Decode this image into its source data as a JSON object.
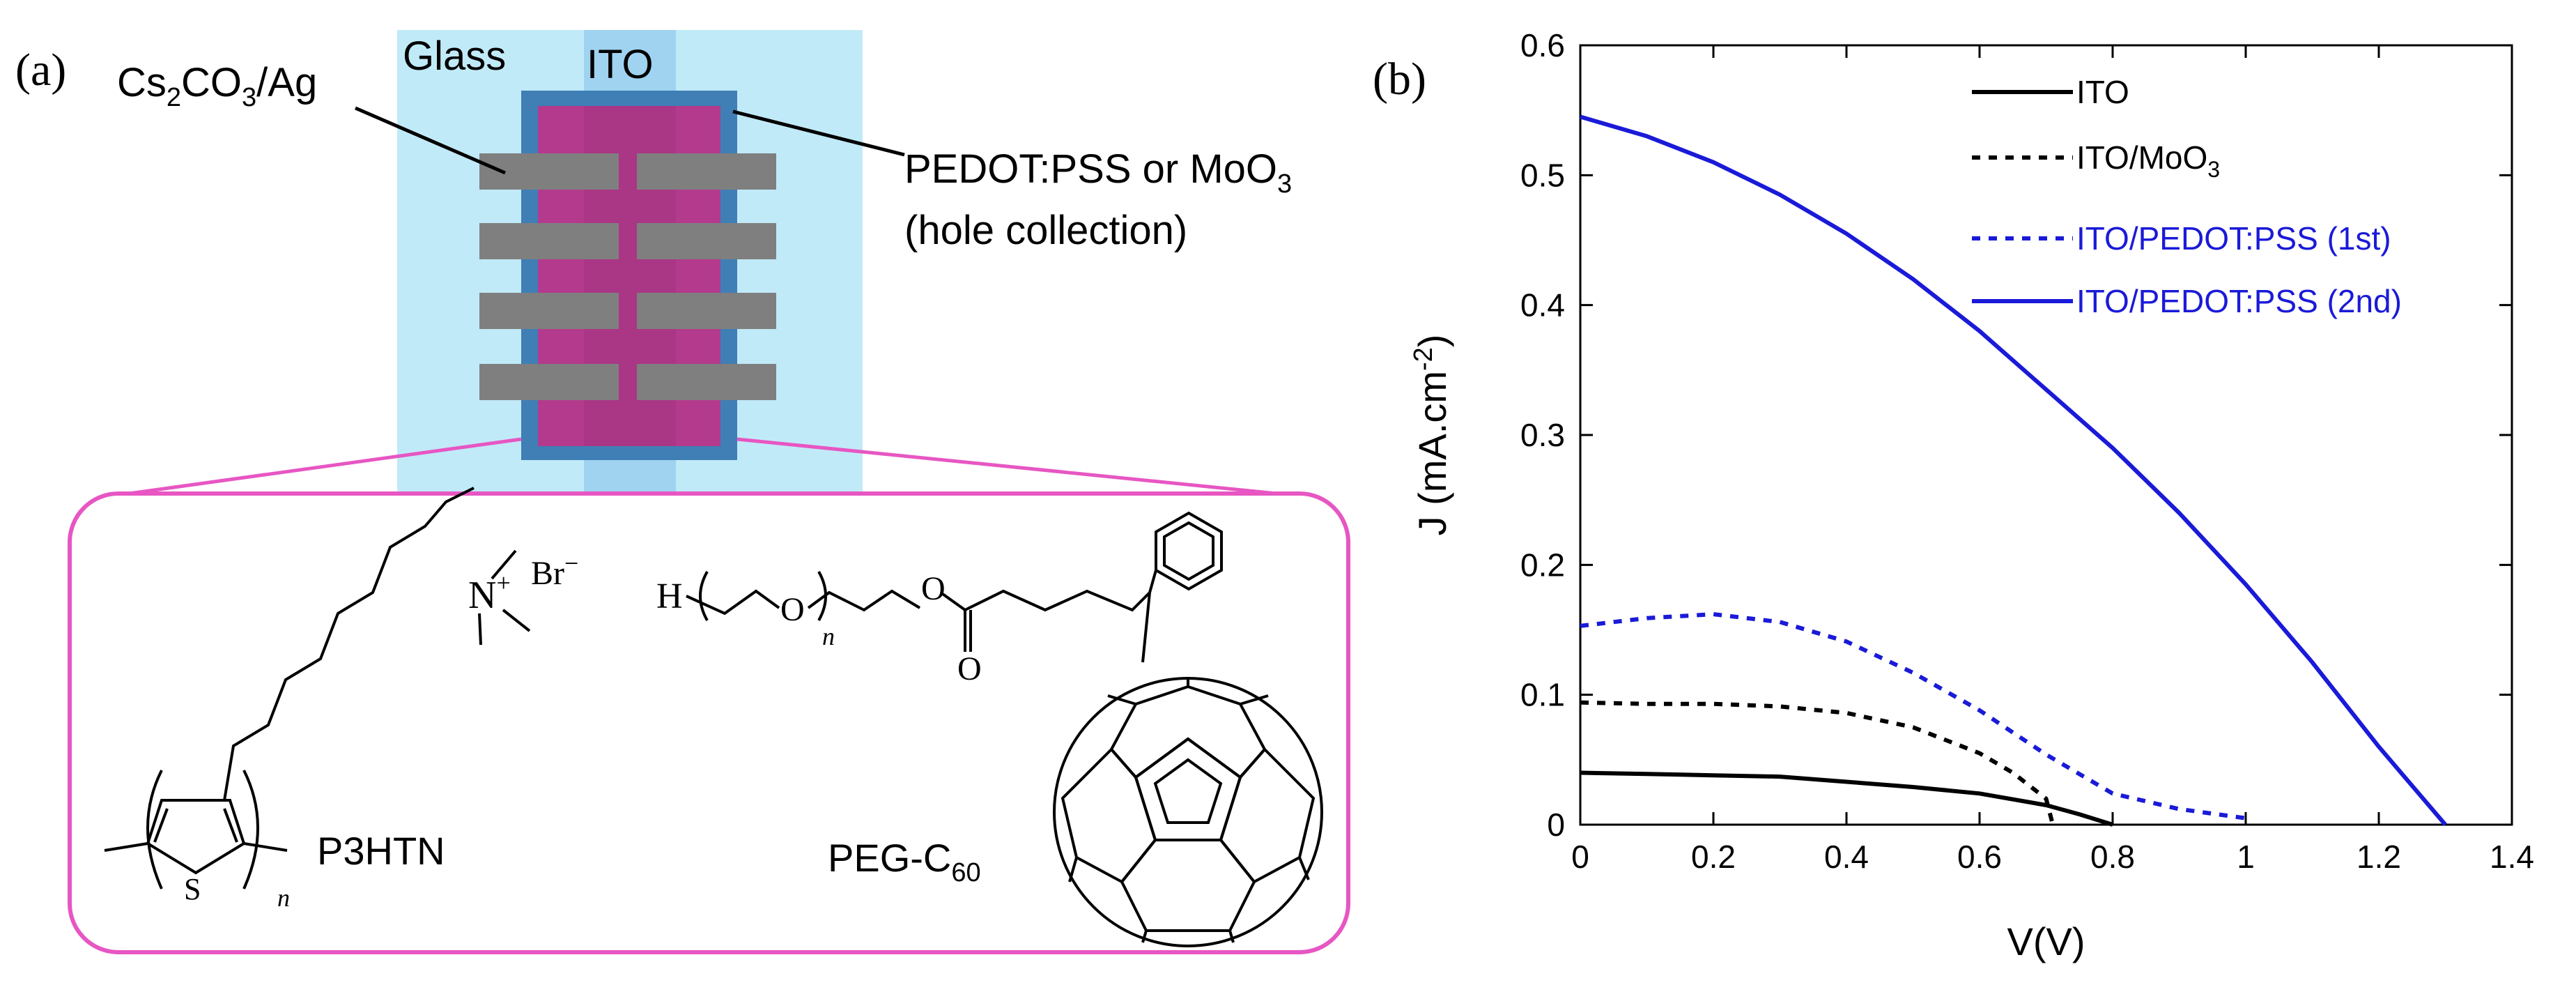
{
  "panel_a": {
    "label": "(a)",
    "glass_label": "Glass",
    "ito_label": "ITO",
    "cathode_main": "Cs",
    "cathode_sub1": "2",
    "cathode_mid": "CO",
    "cathode_sub2": "3",
    "cathode_end": "/Ag",
    "htl_main": "PEDOT:PSS or MoO",
    "htl_sub": "3",
    "htl_note": "(hole collection)",
    "colors": {
      "glass": "#c1eaf8",
      "ito": "#9fd3f0",
      "htl": "#3f7fb6",
      "active": "#b33a8c",
      "electrode": "#7f7f7f",
      "callout": "#e756c3"
    },
    "molecules": {
      "p3htn_name": "P3HTN",
      "peg_main": "PEG-C",
      "peg_sub": "60",
      "atom_n": "N",
      "charge_plus": "+",
      "counterion": "Br",
      "charge_minus": "−",
      "atom_s": "S",
      "atom_h": "H",
      "atom_o": "O",
      "subscript_n": "n"
    }
  },
  "panel_b": {
    "label": "(b)"
  },
  "chart_data": {
    "type": "line",
    "title": "",
    "xlabel": "V(V)",
    "ylabel_main": "J (mA.cm",
    "ylabel_sup": "-2",
    "ylabel_close": ")",
    "xlim": [
      0,
      1.4
    ],
    "ylim": [
      0,
      0.6
    ],
    "xticks": [
      0,
      0.2,
      0.4,
      0.6,
      0.8,
      1,
      1.2,
      1.4
    ],
    "xtick_labels": [
      "0",
      "0.2",
      "0.4",
      "0.6",
      "0.8",
      "1",
      "1.2",
      "1.4"
    ],
    "yticks": [
      0,
      0.1,
      0.2,
      0.3,
      0.4,
      0.5,
      0.6
    ],
    "ytick_labels": [
      "0",
      "0.1",
      "0.2",
      "0.3",
      "0.4",
      "0.5",
      "0.6"
    ],
    "legend_position": "top-right",
    "series": [
      {
        "name": "ITO",
        "legend_main": "ITO",
        "legend_sub": "",
        "legend_end": "",
        "color": "#000000",
        "style": "solid",
        "x": [
          0,
          0.1,
          0.2,
          0.3,
          0.4,
          0.5,
          0.6,
          0.7,
          0.75,
          0.8
        ],
        "y": [
          0.04,
          0.039,
          0.038,
          0.037,
          0.033,
          0.029,
          0.024,
          0.015,
          0.008,
          0.0
        ]
      },
      {
        "name": "ITO/MoO3",
        "legend_main": "ITO/MoO",
        "legend_sub": "3",
        "legend_end": "",
        "color": "#000000",
        "style": "dotted",
        "x": [
          0,
          0.1,
          0.2,
          0.3,
          0.4,
          0.5,
          0.6,
          0.65,
          0.7,
          0.71
        ],
        "y": [
          0.094,
          0.093,
          0.093,
          0.091,
          0.086,
          0.075,
          0.055,
          0.04,
          0.02,
          0.0
        ]
      },
      {
        "name": "ITO/PEDOT:PSS (1st)",
        "legend_main": "ITO/PEDOT:PSS (1st)",
        "legend_sub": "",
        "legend_end": "",
        "color": "#1a1ad8",
        "style": "dotted",
        "x": [
          0,
          0.1,
          0.2,
          0.3,
          0.4,
          0.5,
          0.6,
          0.7,
          0.8,
          0.9,
          1.0
        ],
        "y": [
          0.153,
          0.159,
          0.162,
          0.156,
          0.141,
          0.117,
          0.088,
          0.054,
          0.024,
          0.012,
          0.005
        ]
      },
      {
        "name": "ITO/PEDOT:PSS (2nd)",
        "legend_main": "ITO/PEDOT:PSS (2nd)",
        "legend_sub": "",
        "legend_end": "",
        "color": "#1a1ad8",
        "style": "solid",
        "x": [
          0,
          0.1,
          0.2,
          0.3,
          0.4,
          0.5,
          0.6,
          0.7,
          0.8,
          0.9,
          1.0,
          1.1,
          1.2,
          1.3
        ],
        "y": [
          0.545,
          0.53,
          0.51,
          0.485,
          0.455,
          0.42,
          0.38,
          0.335,
          0.29,
          0.24,
          0.185,
          0.125,
          0.06,
          0.0
        ]
      }
    ]
  }
}
